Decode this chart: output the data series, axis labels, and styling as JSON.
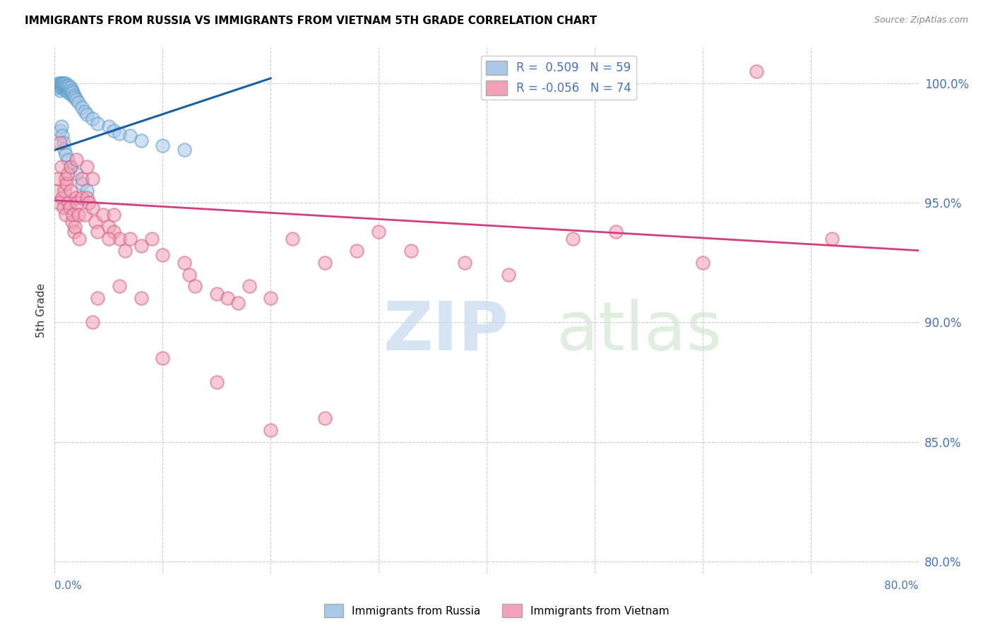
{
  "title": "IMMIGRANTS FROM RUSSIA VS IMMIGRANTS FROM VIETNAM 5TH GRADE CORRELATION CHART",
  "source": "Source: ZipAtlas.com",
  "ylabel": "5th Grade",
  "ytick_values": [
    80.0,
    85.0,
    90.0,
    95.0,
    100.0
  ],
  "xlim": [
    0.0,
    80.0
  ],
  "ylim": [
    79.5,
    101.5
  ],
  "legend_label_russia": "Immigrants from Russia",
  "legend_label_vietnam": "Immigrants from Vietnam",
  "russia_color": "#a8c8e8",
  "russia_edge": "#5a9dc8",
  "vietnam_color": "#f4a0b8",
  "vietnam_edge": "#d06080",
  "russia_line_color": "#1a5fa0",
  "vietnam_line_color": "#d04080",
  "watermark_zip": "ZIP",
  "watermark_atlas": "atlas",
  "russia_R": 0.509,
  "russia_N": 59,
  "vietnam_R": -0.056,
  "vietnam_N": 74,
  "russia_trend_x": [
    0.0,
    20.0
  ],
  "russia_trend_y": [
    97.2,
    100.2
  ],
  "vietnam_trend_x": [
    0.0,
    80.0
  ],
  "vietnam_trend_y": [
    95.1,
    93.0
  ],
  "russia_x": [
    0.2,
    0.3,
    0.3,
    0.4,
    0.5,
    0.5,
    0.6,
    0.6,
    0.7,
    0.7,
    0.7,
    0.8,
    0.8,
    0.8,
    0.9,
    0.9,
    1.0,
    1.0,
    1.0,
    1.1,
    1.1,
    1.2,
    1.2,
    1.3,
    1.3,
    1.3,
    1.4,
    1.5,
    1.5,
    1.6,
    1.6,
    1.7,
    1.8,
    1.9,
    2.0,
    2.2,
    2.5,
    2.8,
    3.0,
    3.5,
    4.0,
    5.0,
    5.5,
    6.0,
    7.0,
    8.0,
    10.0,
    12.0,
    0.5,
    0.6,
    0.7,
    0.8,
    0.9,
    1.0,
    1.2,
    1.5,
    2.0,
    2.5,
    3.0
  ],
  "russia_y": [
    99.8,
    99.9,
    100.0,
    99.9,
    99.7,
    100.0,
    99.8,
    100.0,
    99.9,
    99.8,
    100.0,
    99.9,
    100.0,
    100.0,
    99.8,
    99.9,
    99.7,
    99.8,
    100.0,
    99.8,
    99.9,
    99.7,
    99.8,
    99.6,
    99.8,
    99.9,
    99.7,
    99.6,
    99.8,
    99.5,
    99.7,
    99.6,
    99.5,
    99.4,
    99.3,
    99.2,
    99.0,
    98.8,
    98.7,
    98.5,
    98.3,
    98.2,
    98.0,
    97.9,
    97.8,
    97.6,
    97.4,
    97.2,
    98.0,
    98.2,
    97.8,
    97.5,
    97.2,
    97.0,
    96.8,
    96.5,
    96.2,
    95.8,
    95.5
  ],
  "vietnam_x": [
    0.2,
    0.3,
    0.4,
    0.5,
    0.6,
    0.7,
    0.8,
    0.9,
    1.0,
    1.0,
    1.1,
    1.2,
    1.3,
    1.4,
    1.5,
    1.5,
    1.6,
    1.7,
    1.8,
    1.9,
    2.0,
    2.0,
    2.1,
    2.2,
    2.3,
    2.5,
    2.5,
    2.8,
    3.0,
    3.0,
    3.2,
    3.5,
    3.5,
    3.8,
    4.0,
    4.5,
    5.0,
    5.5,
    5.5,
    6.0,
    6.5,
    7.0,
    8.0,
    9.0,
    10.0,
    12.0,
    12.5,
    13.0,
    15.0,
    16.0,
    17.0,
    18.0,
    20.0,
    22.0,
    25.0,
    28.0,
    30.0,
    33.0,
    38.0,
    42.0,
    48.0,
    52.0,
    60.0,
    65.0,
    72.0,
    4.0,
    3.5,
    5.0,
    6.0,
    8.0,
    10.0,
    15.0,
    20.0,
    25.0
  ],
  "vietnam_y": [
    95.5,
    96.0,
    95.0,
    97.5,
    96.5,
    95.2,
    94.8,
    95.5,
    94.5,
    96.0,
    95.8,
    96.2,
    95.0,
    94.8,
    95.5,
    96.5,
    94.2,
    94.5,
    93.8,
    94.0,
    95.2,
    96.8,
    95.0,
    94.5,
    93.5,
    95.2,
    96.0,
    94.5,
    95.2,
    96.5,
    95.0,
    94.8,
    96.0,
    94.2,
    93.8,
    94.5,
    94.0,
    93.8,
    94.5,
    93.5,
    93.0,
    93.5,
    93.2,
    93.5,
    92.8,
    92.5,
    92.0,
    91.5,
    91.2,
    91.0,
    90.8,
    91.5,
    91.0,
    93.5,
    92.5,
    93.0,
    93.8,
    93.0,
    92.5,
    92.0,
    93.5,
    93.8,
    92.5,
    100.5,
    93.5,
    91.0,
    90.0,
    93.5,
    91.5,
    91.0,
    88.5,
    87.5,
    85.5,
    86.0
  ]
}
